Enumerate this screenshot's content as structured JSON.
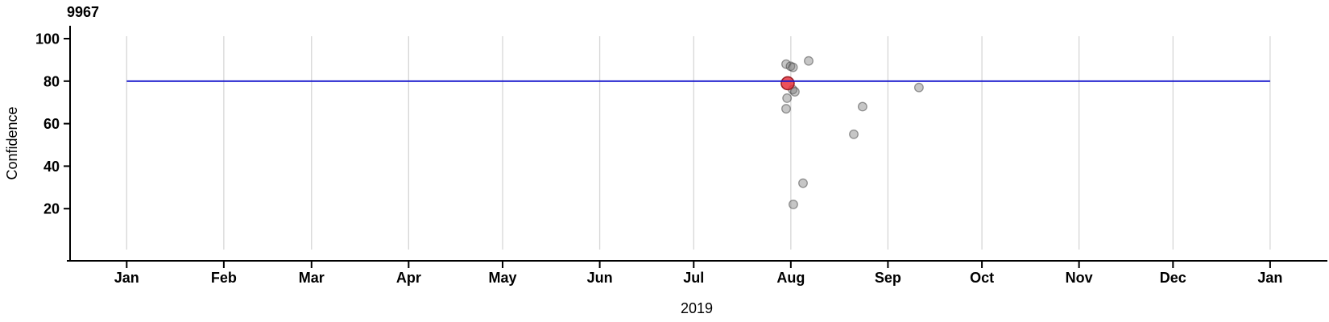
{
  "chart_data": {
    "type": "scatter",
    "title": "9967",
    "xlabel": "2019",
    "ylabel": "Confidence",
    "ylim": [
      0,
      105
    ],
    "y_ticks": [
      100,
      80,
      60,
      40,
      20
    ],
    "x_ticks": [
      {
        "label": "Jan",
        "day": 0
      },
      {
        "label": "Feb",
        "day": 31
      },
      {
        "label": "Mar",
        "day": 59
      },
      {
        "label": "Apr",
        "day": 90
      },
      {
        "label": "May",
        "day": 120
      },
      {
        "label": "Jun",
        "day": 151
      },
      {
        "label": "Jul",
        "day": 181
      },
      {
        "label": "Aug",
        "day": 212
      },
      {
        "label": "Sep",
        "day": 243
      },
      {
        "label": "Oct",
        "day": 273
      },
      {
        "label": "Nov",
        "day": 304
      },
      {
        "label": "Dec",
        "day": 334
      },
      {
        "label": "Jan",
        "day": 365
      }
    ],
    "grid": "vertical-month-lines",
    "legend": "none",
    "reference_line": {
      "value": 80,
      "span_days": [
        0,
        365
      ]
    },
    "points": [
      {
        "date": "Jul 30",
        "day": 210.5,
        "confidence": 88,
        "highlighted": false
      },
      {
        "date": "Jul 31",
        "day": 211.9,
        "confidence": 87,
        "highlighted": false
      },
      {
        "date": "Aug 1",
        "day": 212.7,
        "confidence": 86.5,
        "highlighted": false
      },
      {
        "date": "Aug 6",
        "day": 217.7,
        "confidence": 89.5,
        "highlighted": false
      },
      {
        "date": "Aug 1",
        "day": 212.6,
        "confidence": 76,
        "highlighted": false
      },
      {
        "date": "Aug 2",
        "day": 213.3,
        "confidence": 75,
        "highlighted": false
      },
      {
        "date": "Jul 30",
        "day": 210.8,
        "confidence": 72,
        "highlighted": false
      },
      {
        "date": "Jul 30",
        "day": 210.5,
        "confidence": 67,
        "highlighted": false
      },
      {
        "date": "Aug 4",
        "day": 215.9,
        "confidence": 32,
        "highlighted": false
      },
      {
        "date": "Aug 1",
        "day": 212.8,
        "confidence": 22,
        "highlighted": false
      },
      {
        "date": "Aug 21",
        "day": 232.1,
        "confidence": 55,
        "highlighted": false
      },
      {
        "date": "Aug 23",
        "day": 234.9,
        "confidence": 68,
        "highlighted": false
      },
      {
        "date": "Sep 10",
        "day": 252.9,
        "confidence": 77,
        "highlighted": false
      },
      {
        "date": "Jul 31",
        "day": 211.0,
        "confidence": 79,
        "highlighted": true
      }
    ],
    "colors": {
      "axis": "#000000",
      "gridline": "#d6d6d6",
      "reference_line": "#1414cc",
      "point_fill": "#787878",
      "point_stroke": "#3c3c3c",
      "highlight_fill": "#e8333e",
      "highlight_stroke": "#9c2127"
    }
  }
}
